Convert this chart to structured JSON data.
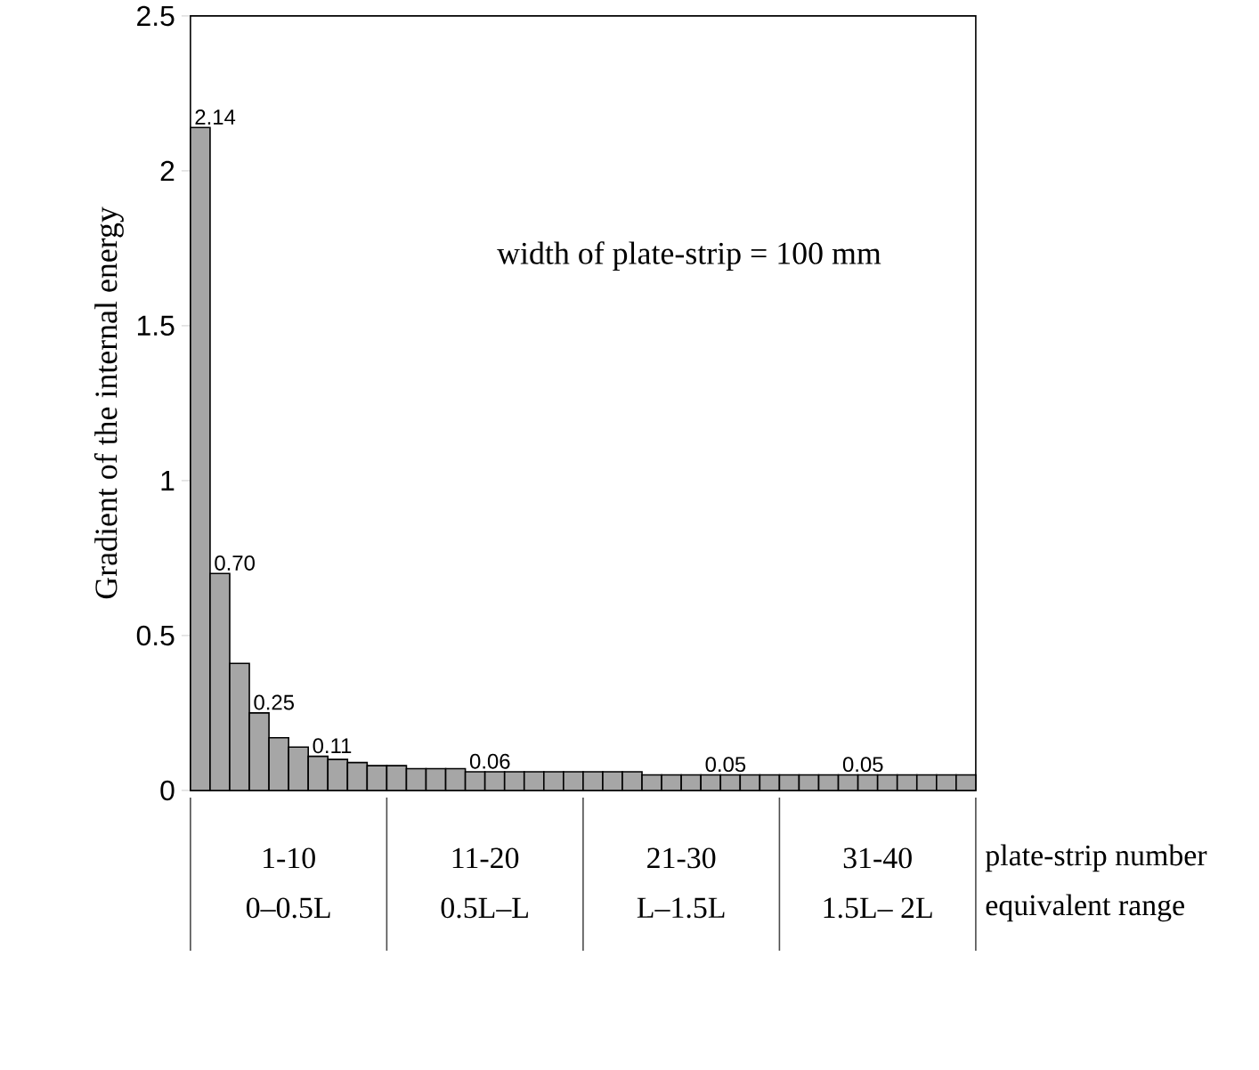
{
  "chart_data": {
    "type": "bar",
    "ylabel": "Gradient of the internal energy",
    "categories": [
      null,
      null,
      null,
      null,
      null,
      null,
      null,
      null,
      null,
      null,
      null,
      null,
      null,
      null,
      null,
      null,
      null,
      null,
      null,
      null,
      null,
      null,
      null,
      null,
      null,
      null,
      null,
      null,
      null,
      null,
      null,
      null,
      null,
      null,
      null,
      null,
      null,
      null,
      null,
      null
    ],
    "values": [
      2.14,
      0.7,
      0.41,
      0.25,
      0.17,
      0.14,
      0.11,
      0.1,
      0.09,
      0.08,
      0.08,
      0.07,
      0.07,
      0.07,
      0.06,
      0.06,
      0.06,
      0.06,
      0.06,
      0.06,
      0.06,
      0.06,
      0.06,
      0.05,
      0.05,
      0.05,
      0.05,
      0.05,
      0.05,
      0.05,
      0.05,
      0.05,
      0.05,
      0.05,
      0.05,
      0.05,
      0.05,
      0.05,
      0.05,
      0.05
    ],
    "value_labels": [
      "2.14",
      "0.70",
      null,
      "0.25",
      null,
      null,
      "0.11",
      null,
      null,
      null,
      null,
      null,
      null,
      null,
      "0.06",
      null,
      null,
      null,
      null,
      null,
      null,
      null,
      null,
      null,
      null,
      null,
      "0.05",
      null,
      null,
      null,
      null,
      null,
      null,
      "0.05",
      null,
      null,
      null,
      null,
      null,
      null
    ],
    "color": "#a6a6a6",
    "ylim": [
      0,
      2.5
    ],
    "yticks": [
      0,
      0.5,
      1,
      1.5,
      2,
      2.5
    ],
    "annotations": [
      "width of plate-strip = 100 mm",
      "1-10",
      "0–0.5L",
      "11-20",
      "0.5L–L",
      "21-30",
      "L–1.5L",
      "31-40",
      "1.5L– 2L",
      "plate-strip number",
      "equivalent range"
    ]
  }
}
